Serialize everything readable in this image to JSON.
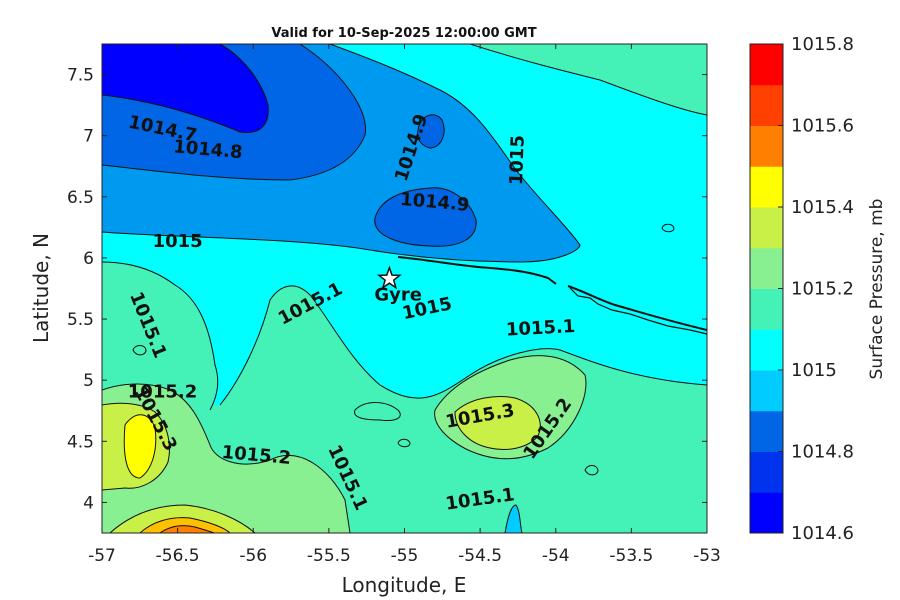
{
  "chart_data": {
    "type": "contour",
    "title": "Valid for 10-Sep-2025 12:00:00 GMT",
    "xlabel": "Longitude, E",
    "ylabel": "Latitude, N",
    "xlim": [
      -57,
      -53
    ],
    "ylim": [
      3.75,
      7.75
    ],
    "x_ticks": [
      -57,
      -56.5,
      -56,
      -55.5,
      -55,
      -54.5,
      -54,
      -53.5,
      -53
    ],
    "x_tick_labels": [
      "-57",
      "-56.5",
      "-56",
      "-55.5",
      "-55",
      "-54.5",
      "-54",
      "-53.5",
      "-53"
    ],
    "y_ticks": [
      4,
      4.5,
      5,
      5.5,
      6,
      6.5,
      7,
      7.5
    ],
    "y_tick_labels": [
      "4",
      "4.5",
      "5",
      "5.5",
      "6",
      "6.5",
      "7",
      "7.5"
    ],
    "colorbar": {
      "label": "Surface Pressure, mb",
      "range": [
        1014.6,
        1015.8
      ],
      "step": 0.1,
      "tick_values": [
        1014.6,
        1014.8,
        1015,
        1015.2,
        1015.4,
        1015.6,
        1015.8
      ],
      "tick_labels": [
        "1014.6",
        "1014.8",
        "1015",
        "1015.2",
        "1015.4",
        "1015.6",
        "1015.8"
      ],
      "colors": [
        "#0000ff",
        "#0033ee",
        "#0066e6",
        "#0099f0",
        "#00ccff",
        "#00ffff",
        "#44f2b8",
        "#88f090",
        "#c8f046",
        "#ffff00",
        "#ffc000",
        "#ff8000",
        "#ff4000",
        "#ff0000"
      ]
    },
    "contour_labels": [
      {
        "text": "1014.7",
        "lon": -56.6,
        "lat": 7.05,
        "angle": 12
      },
      {
        "text": "1014.8",
        "lon": -56.3,
        "lat": 6.88,
        "angle": 5
      },
      {
        "text": "1014.9",
        "lon": -54.95,
        "lat": 6.9,
        "angle": -72
      },
      {
        "text": "1015",
        "lon": -54.25,
        "lat": 6.8,
        "angle": -88
      },
      {
        "text": "1014.9",
        "lon": -54.8,
        "lat": 6.45,
        "angle": 5
      },
      {
        "text": "1015",
        "lon": -56.5,
        "lat": 6.13,
        "angle": 0
      },
      {
        "text": "1015.1",
        "lon": -56.7,
        "lat": 5.45,
        "angle": 68
      },
      {
        "text": "1015.1",
        "lon": -55.62,
        "lat": 5.62,
        "angle": -28
      },
      {
        "text": "1015",
        "lon": -54.85,
        "lat": 5.58,
        "angle": -12
      },
      {
        "text": "1015.1",
        "lon": -54.1,
        "lat": 5.42,
        "angle": -3
      },
      {
        "text": "1015.2",
        "lon": -56.6,
        "lat": 4.9,
        "angle": 0
      },
      {
        "text": "1015.3",
        "lon": -56.65,
        "lat": 4.68,
        "angle": 62
      },
      {
        "text": "1015.3",
        "lon": -54.5,
        "lat": 4.7,
        "angle": -10
      },
      {
        "text": "1015.2",
        "lon": -54.05,
        "lat": 4.6,
        "angle": -55
      },
      {
        "text": "1015.2",
        "lon": -55.98,
        "lat": 4.38,
        "angle": 5
      },
      {
        "text": "1015.1",
        "lon": -55.38,
        "lat": 4.2,
        "angle": 65
      },
      {
        "text": "1015.1",
        "lon": -54.5,
        "lat": 4.02,
        "angle": -8
      }
    ],
    "marker": {
      "label": "Gyre",
      "lon": -55.1,
      "lat": 5.83,
      "symbol": "star"
    }
  }
}
